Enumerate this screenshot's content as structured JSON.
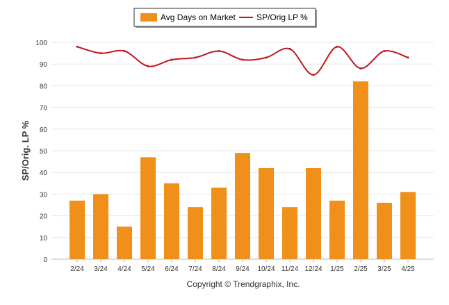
{
  "chart_data": {
    "type": "bar",
    "title": "",
    "xlabel": "",
    "ylabel": "SP/Orig. LP %",
    "ylim": [
      0,
      100
    ],
    "yticks": [
      0,
      10,
      20,
      30,
      40,
      50,
      60,
      70,
      80,
      90,
      100
    ],
    "grid": true,
    "legend_position": "top-center",
    "categories": [
      "2/24",
      "3/24",
      "4/24",
      "5/24",
      "6/24",
      "7/24",
      "8/24",
      "9/24",
      "10/24",
      "11/24",
      "12/24",
      "1/25",
      "2/25",
      "3/25",
      "4/25"
    ],
    "series": [
      {
        "name": "Avg Days on Market",
        "type": "bar",
        "color": "#f0901a",
        "values": [
          27,
          30,
          15,
          47,
          35,
          24,
          33,
          49,
          42,
          24,
          42,
          27,
          82,
          26,
          31
        ]
      },
      {
        "name": "SP/Orig LP %",
        "type": "line",
        "color": "#c0161c",
        "values": [
          98,
          95,
          96,
          89,
          92,
          93,
          96,
          92,
          93,
          97,
          85,
          98,
          88,
          96,
          93
        ]
      }
    ]
  },
  "footer": {
    "copyright": "Copyright © Trendgraphix, Inc."
  }
}
